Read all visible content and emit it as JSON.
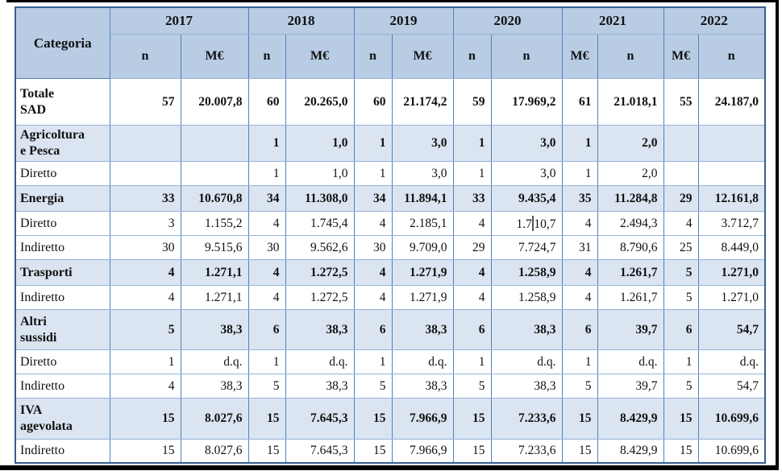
{
  "table": {
    "category_header": "Categoria",
    "years": [
      "2017",
      "2018",
      "2019",
      "2020",
      "2021",
      "2022"
    ],
    "sub_headers": [
      "n",
      "M€",
      "n",
      "M€",
      "n",
      "M€",
      "n",
      "n",
      "M€",
      "n",
      "M€",
      "n"
    ],
    "rows": [
      {
        "label": "Totale\nSAD",
        "type": "total",
        "values": [
          "57",
          "20.007,8",
          "60",
          "20.265,0",
          "60",
          "21.174,2",
          "59",
          "17.969,2",
          "61",
          "21.018,1",
          "55",
          "24.187,0"
        ]
      },
      {
        "label": "Agricoltura\ne Pesca",
        "type": "category",
        "values": [
          "",
          "",
          "1",
          "1,0",
          "1",
          "3,0",
          "1",
          "3,0",
          "1",
          "2,0",
          "",
          ""
        ]
      },
      {
        "label": "Diretto",
        "type": "sub",
        "values": [
          "",
          "",
          "1",
          "1,0",
          "1",
          "3,0",
          "1",
          "3,0",
          "1",
          "2,0",
          "",
          ""
        ]
      },
      {
        "label": "Energia",
        "type": "category",
        "values": [
          "33",
          "10.670,8",
          "34",
          "11.308,0",
          "34",
          "11.894,1",
          "33",
          "9.435,4",
          "35",
          "11.284,8",
          "29",
          "12.161,8"
        ]
      },
      {
        "label": "Diretto",
        "type": "sub",
        "values": [
          "3",
          "1.155,2",
          "4",
          "1.745,4",
          "4",
          "2.185,1",
          "4",
          "1.710,7",
          "4",
          "2.494,3",
          "4",
          "3.712,7"
        ]
      },
      {
        "label": "Indiretto",
        "type": "sub",
        "values": [
          "30",
          "9.515,6",
          "30",
          "9.562,6",
          "30",
          "9.709,0",
          "29",
          "7.724,7",
          "31",
          "8.790,6",
          "25",
          "8.449,0"
        ]
      },
      {
        "label": "Trasporti",
        "type": "category",
        "values": [
          "4",
          "1.271,1",
          "4",
          "1.272,5",
          "4",
          "1.271,9",
          "4",
          "1.258,9",
          "4",
          "1.261,7",
          "5",
          "1.271,0"
        ]
      },
      {
        "label": "Indiretto",
        "type": "sub",
        "values": [
          "4",
          "1.271,1",
          "4",
          "1.272,5",
          "4",
          "1.271,9",
          "4",
          "1.258,9",
          "4",
          "1.261,7",
          "5",
          "1.271,0"
        ]
      },
      {
        "label": "Altri\nsussidi",
        "type": "category",
        "values": [
          "5",
          "38,3",
          "6",
          "38,3",
          "6",
          "38,3",
          "6",
          "38,3",
          "6",
          "39,7",
          "6",
          "54,7"
        ]
      },
      {
        "label": "Diretto",
        "type": "sub",
        "values": [
          "1",
          "d.q.",
          "1",
          "d.q.",
          "1",
          "d.q.",
          "1",
          "d.q.",
          "1",
          "d.q.",
          "1",
          "d.q."
        ]
      },
      {
        "label": "Indiretto",
        "type": "sub",
        "values": [
          "4",
          "38,3",
          "5",
          "38,3",
          "5",
          "38,3",
          "5",
          "38,3",
          "5",
          "39,7",
          "5",
          "54,7"
        ]
      },
      {
        "label": "IVA\nagevolata",
        "type": "category",
        "values": [
          "15",
          "8.027,6",
          "15",
          "7.645,3",
          "15",
          "7.966,9",
          "15",
          "7.233,6",
          "15",
          "8.429,9",
          "15",
          "10.699,6"
        ]
      },
      {
        "label": "Indiretto",
        "type": "sub",
        "values": [
          "15",
          "8.027,6",
          "15",
          "7.645,3",
          "15",
          "7.966,9",
          "15",
          "7.233,6",
          "15",
          "8.429,9",
          "15",
          "10.699,6"
        ]
      }
    ]
  },
  "text_cursor": {
    "row_index": 4,
    "col_index": 7,
    "before": "1.7",
    "after": "10,7"
  },
  "colors": {
    "header_fill": "#b8cce4",
    "band_fill": "#dbe5f1",
    "vertical_border": "#4f81bd",
    "horizontal_border": "#95b3d7",
    "outer_border": "#365f91",
    "frame_black": "#000000"
  }
}
